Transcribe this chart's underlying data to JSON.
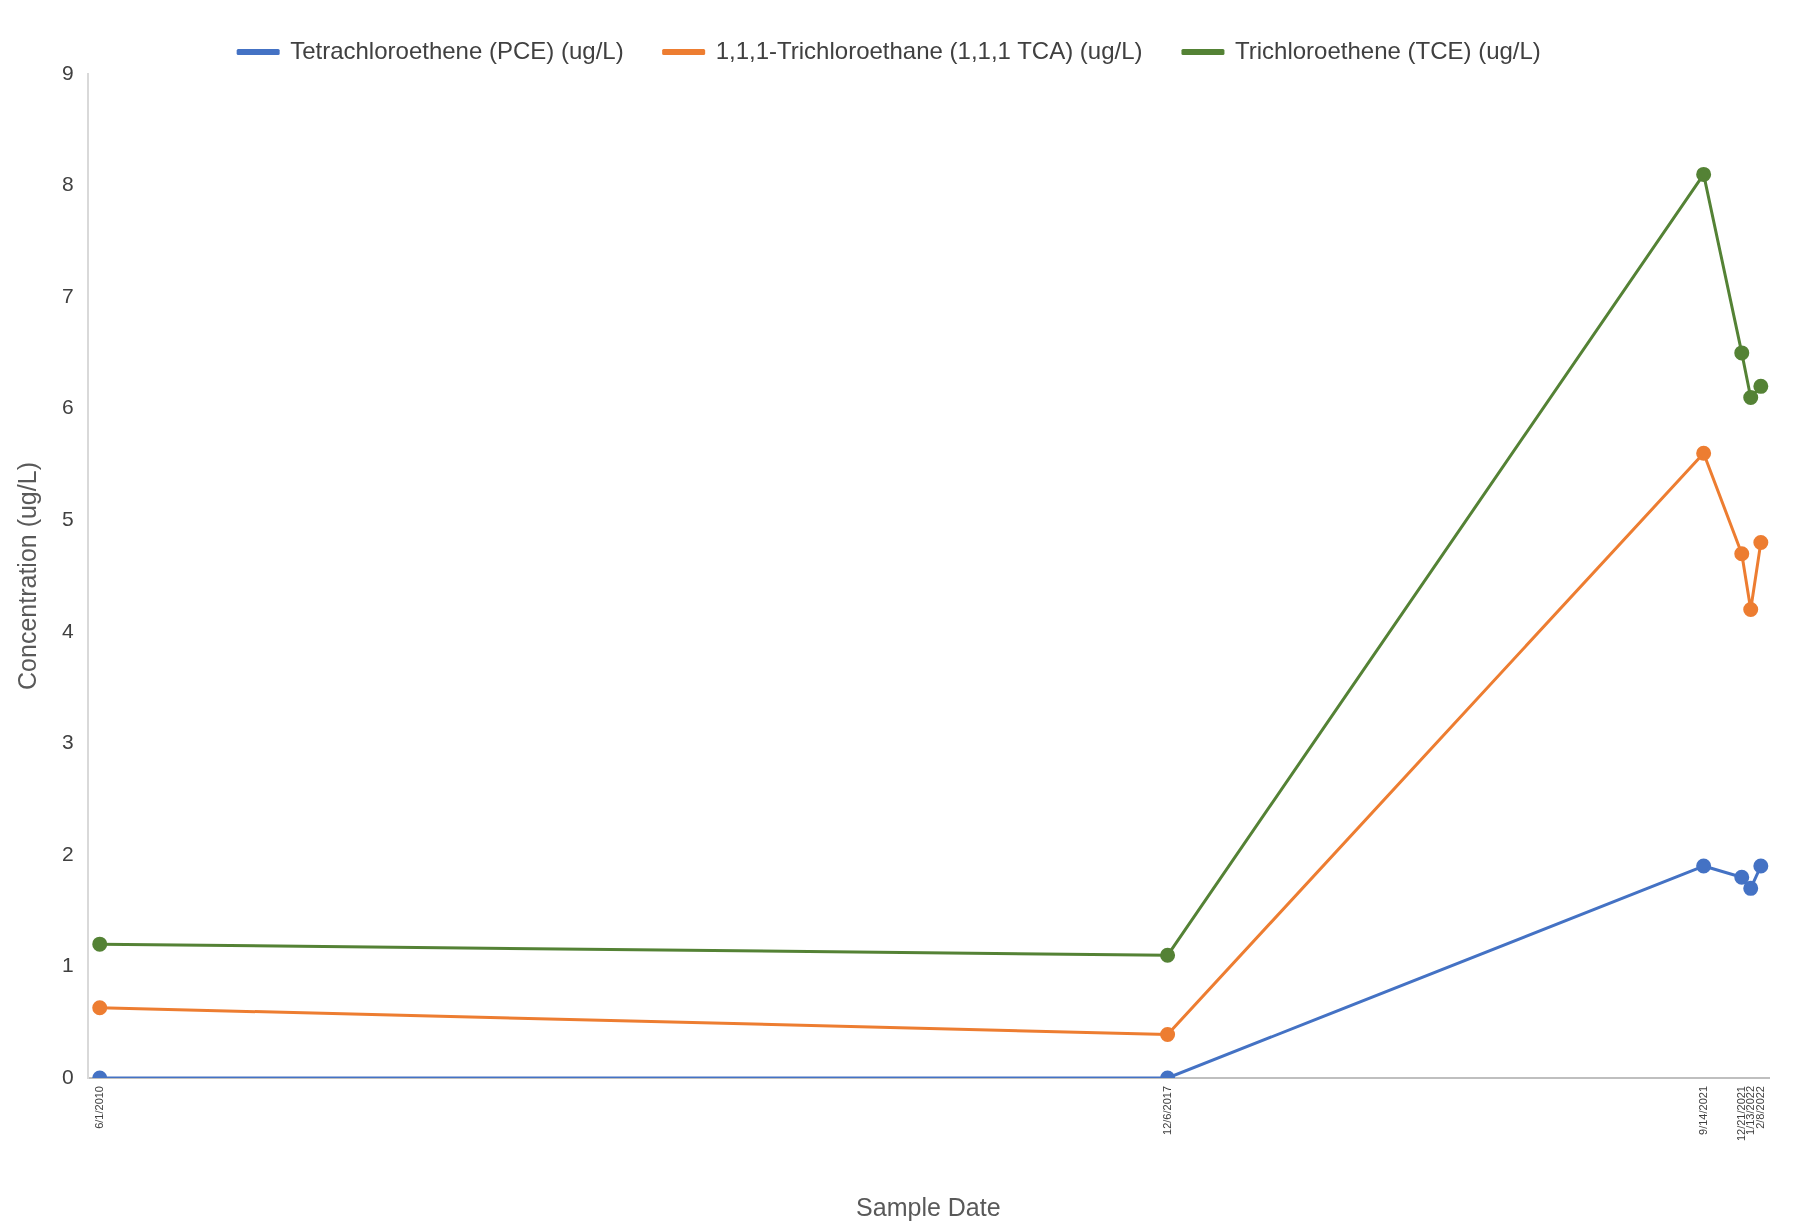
{
  "chart_data": {
    "type": "line",
    "xlabel": "Sample Date",
    "ylabel": "Concentration (ug/L)",
    "x": [
      "2010-06-01",
      "2017-12-06",
      "2021-09-14",
      "2021-12-21",
      "2022-01-13",
      "2022-02-08"
    ],
    "series": [
      {
        "name": "Tetrachloroethene (PCE) (ug/L)",
        "color": "#4472c4",
        "values": [
          0,
          0,
          1.9,
          1.8,
          1.7,
          1.9
        ]
      },
      {
        "name": "1,1,1-Trichloroethane (1,1,1 TCA) (ug/L)",
        "color": "#ed7d31",
        "values": [
          0.63,
          0.39,
          5.6,
          4.7,
          4.2,
          4.8
        ]
      },
      {
        "name": "Trichloroethene (TCE) (ug/L)",
        "color": "#548235",
        "values": [
          1.2,
          1.1,
          8.1,
          6.5,
          6.1,
          6.2
        ]
      }
    ],
    "xlim": [
      "2010-05-01",
      "2022-03-01"
    ],
    "xticks": [
      {
        "value": "2010-06-01",
        "label": "6/1/2010"
      },
      {
        "value": "2017-12-06",
        "label": "12/6/2017"
      },
      {
        "value": "2021-09-14",
        "label": "9/14/2021"
      },
      {
        "value": "2021-12-21",
        "label": "12/21/2021"
      },
      {
        "value": "2022-01-13",
        "label": "1/13/2022"
      },
      {
        "value": "2022-02-08",
        "label": "2/8/2022"
      }
    ],
    "ylim": [
      0,
      9
    ],
    "yticks": [
      0,
      1,
      2,
      3,
      4,
      5,
      6,
      7,
      8,
      9
    ],
    "grid": false,
    "legend": "top",
    "marker": "circle",
    "line_style": "solid"
  }
}
